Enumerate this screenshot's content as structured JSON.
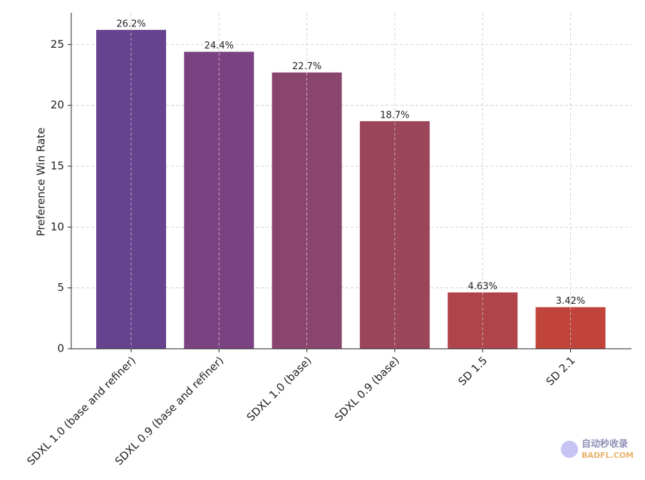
{
  "chart_data": {
    "type": "bar",
    "ylabel": "Preference Win Rate",
    "categories": [
      "SDXL 1.0 (base and refiner)",
      "SDXL 0.9 (base and refiner)",
      "SDXL 1.0 (base)",
      "SDXL 0.9 (base)",
      "SD 1.5",
      "SD 2.1"
    ],
    "values": [
      26.2,
      24.4,
      22.7,
      18.7,
      4.63,
      3.42
    ],
    "value_labels": [
      "26.2%",
      "24.4%",
      "22.7%",
      "18.7%",
      "4.63%",
      "3.42%"
    ],
    "colors": [
      "#66428f",
      "#7a4281",
      "#8a456e",
      "#9b455a",
      "#b0444b",
      "#c1443b"
    ],
    "ylim": [
      0,
      27.6
    ],
    "yticks": [
      0,
      5,
      10,
      15,
      20,
      25
    ],
    "grid": true
  },
  "watermark": {
    "line1": "自动秒收录",
    "line2": "BADFL.COM"
  }
}
